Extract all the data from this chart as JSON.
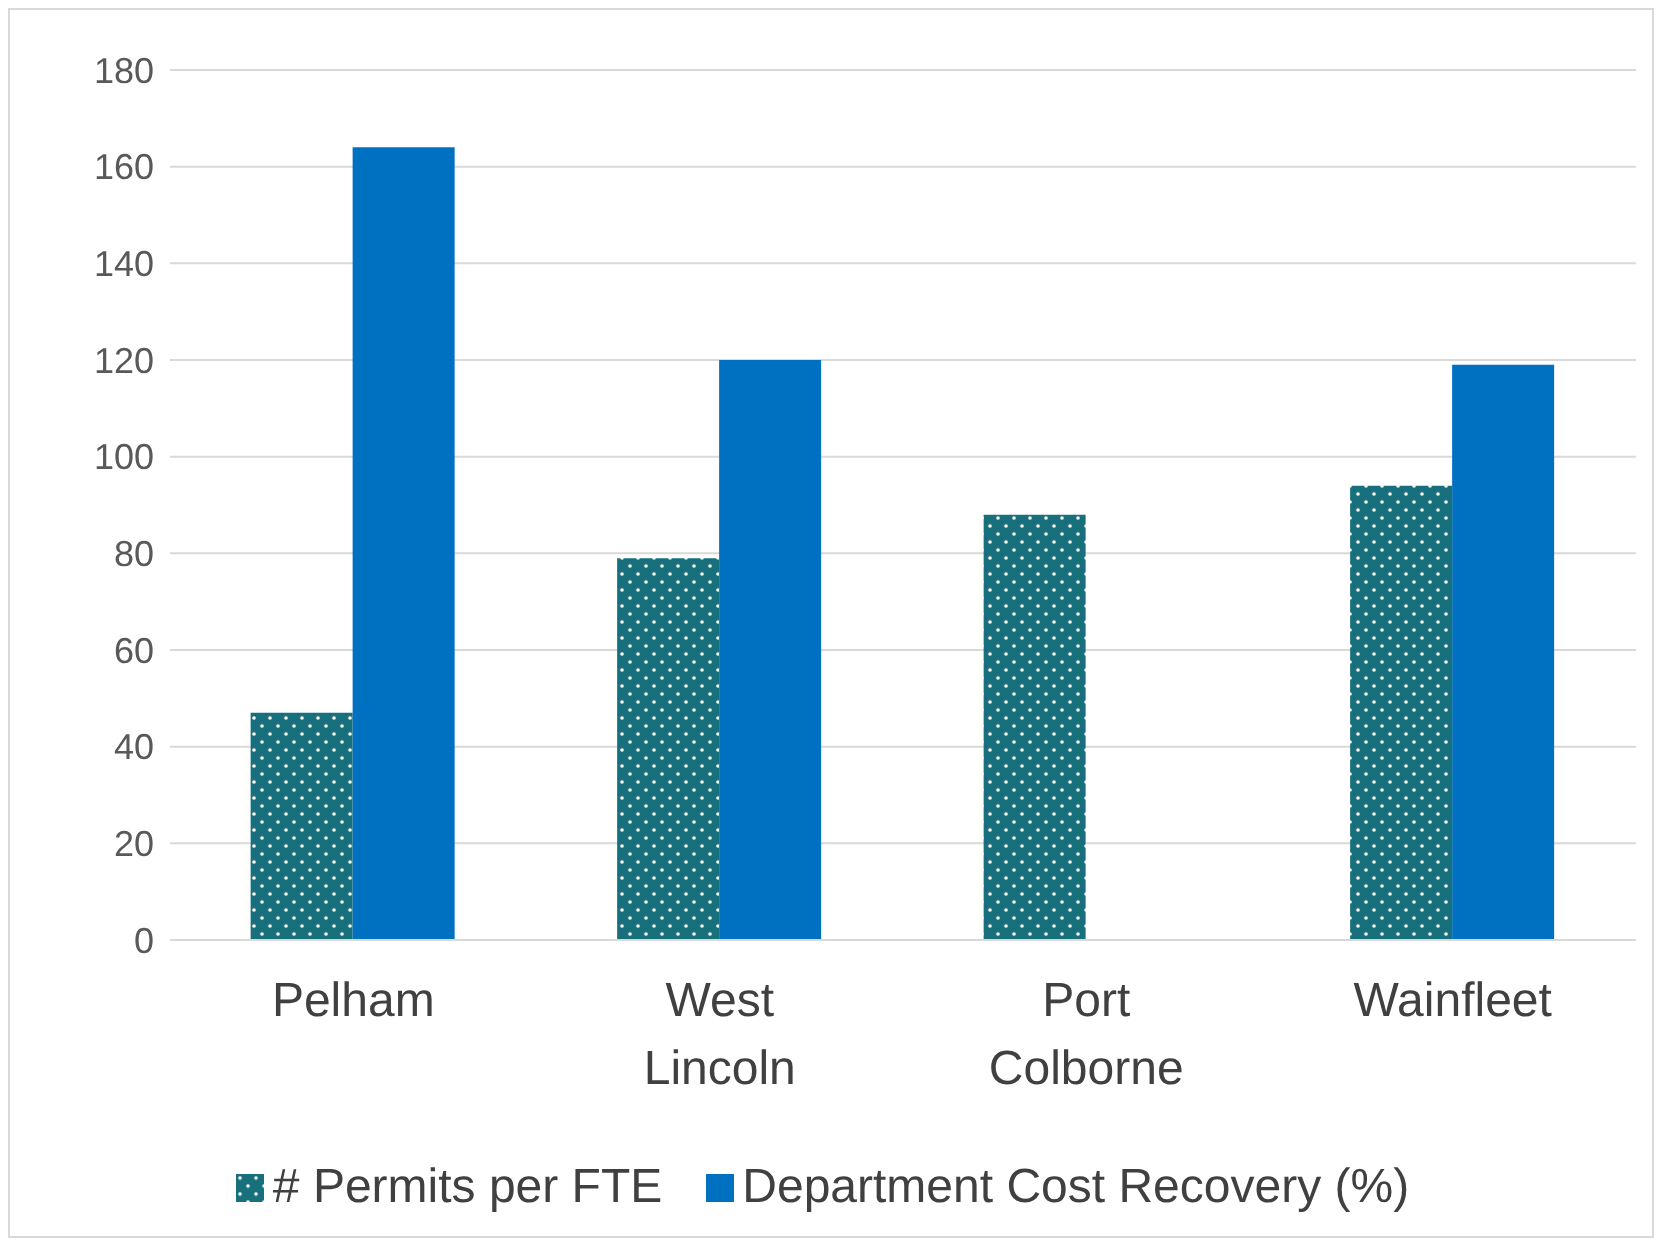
{
  "chart_data": {
    "type": "bar",
    "categories": [
      "Pelham",
      "West Lincoln",
      "Port Colborne",
      "Wainfleet"
    ],
    "series": [
      {
        "name": "# Permits per FTE",
        "color": "#17707c",
        "values": [
          47,
          79,
          88,
          94
        ]
      },
      {
        "name": "Department Cost Recovery (%)",
        "color": "#0070c0",
        "values": [
          164,
          120,
          null,
          119
        ]
      }
    ],
    "ylim": [
      0,
      180
    ],
    "yticks": [
      0,
      20,
      40,
      60,
      80,
      100,
      120,
      140,
      160,
      180
    ],
    "grid": "y",
    "legend": "bottom"
  }
}
